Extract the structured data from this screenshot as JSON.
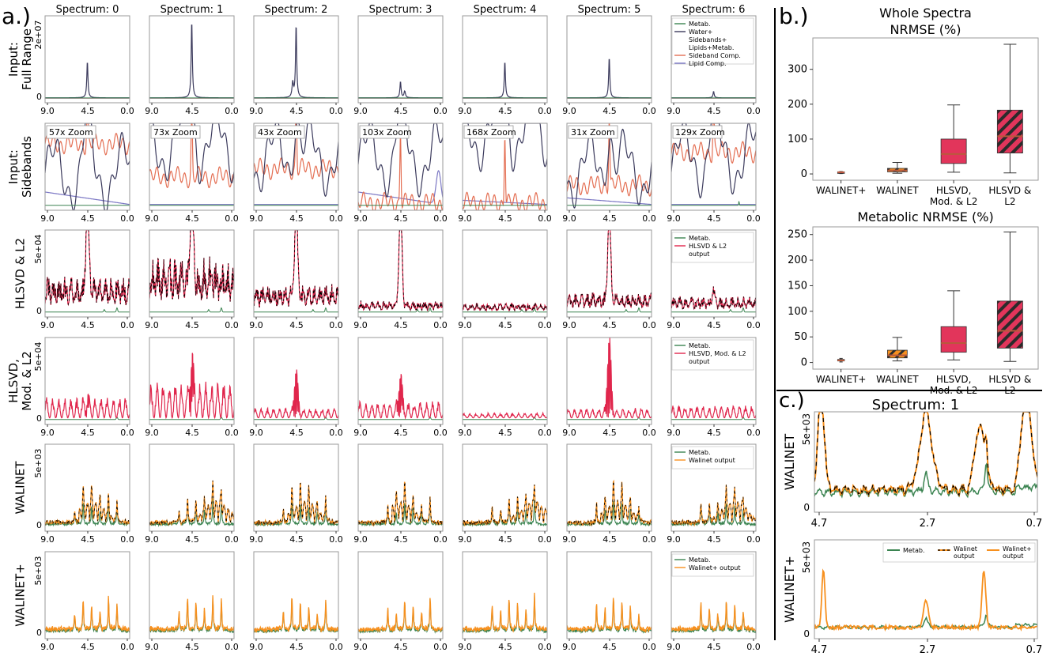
{
  "panel_labels": {
    "a": "a.)",
    "b": "b.)",
    "c": "c.)"
  },
  "grid": {
    "col_titles": [
      "Spectrum: 0",
      "Spectrum: 1",
      "Spectrum: 2",
      "Spectrum: 3",
      "Spectrum: 4",
      "Spectrum: 5",
      "Spectrum: 6"
    ],
    "row_labels": [
      [
        "Input:",
        "Full Range"
      ],
      [
        "Input:",
        "Sidebands"
      ],
      [
        "HLSVD & L2"
      ],
      [
        "HLSVD,",
        "Mod. & L2"
      ],
      [
        "WALINET"
      ],
      [
        "WALINET+"
      ]
    ],
    "x_ticks": [
      "9.0",
      "4.5",
      "0.0"
    ],
    "y_zero": "0",
    "y_top_labels": [
      "2e+07",
      "",
      "5e+04",
      "5e+04",
      "5e+03",
      "5e+03"
    ],
    "zoom_labels": [
      "57x Zoom",
      "73x Zoom",
      "43x Zoom",
      "103x Zoom",
      "168x Zoom",
      "31x Zoom",
      "129x Zoom"
    ],
    "legends": [
      [
        "Metab.",
        "Water+ Sidebands+ Lipids+Metab.",
        "Sideband Comp.",
        "Lipid Comp."
      ],
      [],
      [
        "Metab.",
        "HLSVD & L2 output"
      ],
      [
        "Metab.",
        "HLSVD, Mod. & L2 output"
      ],
      [
        "Metab.",
        "Walinet output"
      ],
      [
        "Metab.",
        "Walinet+ output"
      ]
    ]
  },
  "colors": {
    "metab": "#3b8451",
    "water": "#3b3a5c",
    "sideband": "#e46f53",
    "lipid": "#7b77c4",
    "hlsvd": "#e0264c",
    "walinet": "#f7901e",
    "walinet_dash": "#000000",
    "box_red": "#e2355b",
    "box_orange": "#f7901e",
    "median": "#b85a3c"
  },
  "chart_data": [
    {
      "type": "box",
      "title": "Whole Spectra NRMSE (%)",
      "title_lines": [
        "Whole Spectra",
        "NRMSE (%)"
      ],
      "categories": [
        "WALINET+",
        "WALINET",
        "HLSVD, Mod. & L2",
        "HLSVD & L2"
      ],
      "category_lines": [
        [
          "WALINET+"
        ],
        [
          "WALINET"
        ],
        [
          "HLSVD,",
          "Mod. & L2"
        ],
        [
          "HLSVD &",
          "L2"
        ]
      ],
      "boxes": [
        {
          "min": 1,
          "q1": 3,
          "median": 5,
          "q3": 6,
          "max": 7
        },
        {
          "min": 2,
          "q1": 6,
          "median": 10,
          "q3": 16,
          "max": 33
        },
        {
          "min": 5,
          "q1": 30,
          "median": 57,
          "q3": 100,
          "max": 198
        },
        {
          "min": 3,
          "q1": 60,
          "median": 108,
          "q3": 183,
          "max": 372
        }
      ],
      "hatched": [
        false,
        true,
        false,
        true
      ],
      "ylim": [
        -18,
        390
      ],
      "yticks": [
        0,
        100,
        200,
        300
      ]
    },
    {
      "type": "box",
      "title": "Metabolic NRMSE (%)",
      "title_lines": [
        "Metabolic NRMSE (%)"
      ],
      "categories": [
        "WALINET+",
        "WALINET",
        "HLSVD, Mod. & L2",
        "HLSVD & L2"
      ],
      "category_lines": [
        [
          "WALINET+"
        ],
        [
          "WALINET"
        ],
        [
          "HLSVD,",
          "Mod. & L2"
        ],
        [
          "HLSVD &",
          "L2"
        ]
      ],
      "boxes": [
        {
          "min": 1,
          "q1": 3,
          "median": 4,
          "q3": 6,
          "max": 8
        },
        {
          "min": 3,
          "q1": 9,
          "median": 14,
          "q3": 24,
          "max": 49
        },
        {
          "min": 5,
          "q1": 20,
          "median": 38,
          "q3": 70,
          "max": 140
        },
        {
          "min": 2,
          "q1": 28,
          "median": 62,
          "q3": 120,
          "max": 255
        }
      ],
      "hatched": [
        false,
        true,
        false,
        true
      ],
      "ylim": [
        -13,
        265
      ],
      "yticks": [
        0,
        50,
        100,
        150,
        200,
        250
      ]
    },
    {
      "type": "line",
      "title": "Spectrum: 1",
      "row_labels": [
        "WALINET",
        "WALINET+"
      ],
      "x_ticks": [
        "4.7",
        "2.7",
        "0.7"
      ],
      "y_zero": "0",
      "y_top_label": "5e+03",
      "legend": [
        "Metab.",
        "Walinet output",
        "Walinet+ output"
      ]
    }
  ]
}
